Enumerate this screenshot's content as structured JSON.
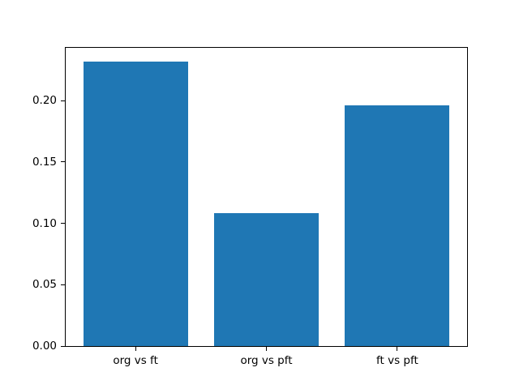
{
  "chart_data": {
    "type": "bar",
    "title": "",
    "xlabel": "",
    "ylabel": "",
    "categories": [
      "org vs ft",
      "org vs pft",
      "ft vs pft"
    ],
    "values": [
      0.232,
      0.108,
      0.196
    ],
    "bar_color": "#1f77b4",
    "background_color": "#ffffff",
    "spine_color": "#000000",
    "ylim": [
      0,
      0.2436
    ],
    "xlim": [
      -0.54,
      2.54
    ],
    "bar_width": 0.8,
    "yticks": [
      0,
      0.05,
      0.1,
      0.15,
      0.2
    ],
    "ytick_labels": [
      "0.00",
      "0.05",
      "0.10",
      "0.15",
      "0.20"
    ],
    "grid": false,
    "legend": null
  }
}
